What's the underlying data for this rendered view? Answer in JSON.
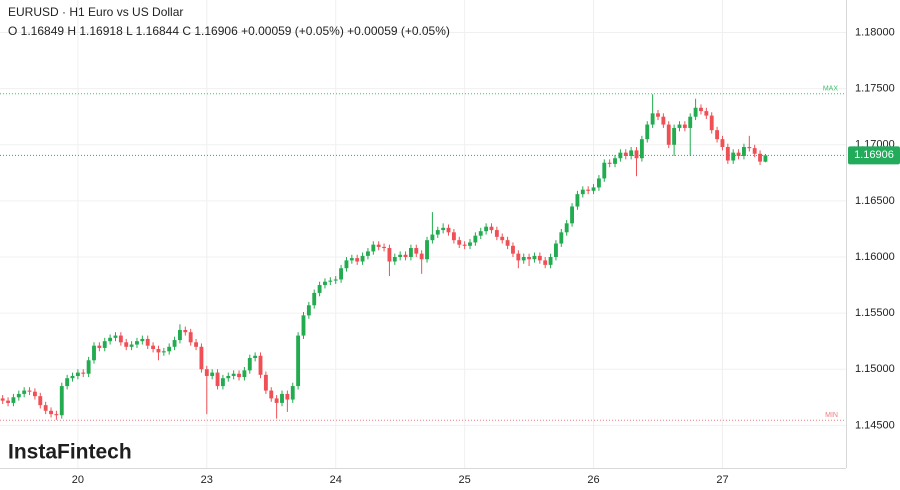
{
  "chart_data": {
    "type": "candlestick",
    "title": "EURUSD · H1 Euro vs US Dollar",
    "subtitle": "O 1.16849 H 1.16918 L 1.16844 C 1.16906 +0.00059 (+0.05%) +0.00059 (+0.05%)",
    "watermark": "InstaFintech",
    "up_color": "#22ab4f",
    "down_color": "#ef4f55",
    "grid": true,
    "ylim": [
      1.1412,
      1.1829
    ],
    "yticks": [
      {
        "value": 1.145,
        "label": "1.14500"
      },
      {
        "value": 1.15,
        "label": "1.15000"
      },
      {
        "value": 1.155,
        "label": "1.15500"
      },
      {
        "value": 1.16,
        "label": "1.16000"
      },
      {
        "value": 1.165,
        "label": "1.16500"
      },
      {
        "value": 1.17,
        "label": "1.17000"
      },
      {
        "value": 1.175,
        "label": "1.17500"
      },
      {
        "value": 1.18,
        "label": "1.18000"
      }
    ],
    "xlim": [
      -0.5,
      157
    ],
    "xticks": [
      {
        "value": 14,
        "label": "20"
      },
      {
        "value": 38,
        "label": "23"
      },
      {
        "value": 62,
        "label": "24"
      },
      {
        "value": 86,
        "label": "25"
      },
      {
        "value": 110,
        "label": "26"
      },
      {
        "value": 134,
        "label": "27"
      }
    ],
    "levels": [
      {
        "name": "MAX",
        "value": 1.17455,
        "color": "#3cbf6a"
      },
      {
        "name": "MIN",
        "value": 1.14545,
        "color": "#f07a7f"
      }
    ],
    "last_price": 1.16906,
    "last_price_color": "#22ab5a",
    "ohlc": [
      [
        1.1474,
        1.1477,
        1.1469,
        1.1472
      ],
      [
        1.1472,
        1.1475,
        1.1467,
        1.147
      ],
      [
        1.147,
        1.1478,
        1.1467,
        1.1475
      ],
      [
        1.1475,
        1.1481,
        1.1472,
        1.1478
      ],
      [
        1.1478,
        1.1484,
        1.1475,
        1.1481
      ],
      [
        1.1481,
        1.1484,
        1.1477,
        1.148
      ],
      [
        1.148,
        1.1483,
        1.1473,
        1.1476
      ],
      [
        1.1476,
        1.1479,
        1.1465,
        1.1468
      ],
      [
        1.1468,
        1.1471,
        1.146,
        1.1463
      ],
      [
        1.1463,
        1.1466,
        1.1457,
        1.146
      ],
      [
        1.146,
        1.1463,
        1.1455,
        1.1459
      ],
      [
        1.1459,
        1.1488,
        1.1456,
        1.1485
      ],
      [
        1.1485,
        1.1495,
        1.1482,
        1.1492
      ],
      [
        1.1492,
        1.1497,
        1.1489,
        1.1494
      ],
      [
        1.1494,
        1.15,
        1.1491,
        1.1497
      ],
      [
        1.1497,
        1.15,
        1.1493,
        1.1496
      ],
      [
        1.1496,
        1.1511,
        1.1493,
        1.1508
      ],
      [
        1.1508,
        1.1524,
        1.1505,
        1.1521
      ],
      [
        1.1521,
        1.1524,
        1.1516,
        1.1519
      ],
      [
        1.1519,
        1.1528,
        1.1516,
        1.1525
      ],
      [
        1.1525,
        1.1531,
        1.1522,
        1.1528
      ],
      [
        1.1528,
        1.1533,
        1.1525,
        1.153
      ],
      [
        1.153,
        1.1533,
        1.1521,
        1.1524
      ],
      [
        1.1524,
        1.1527,
        1.1517,
        1.152
      ],
      [
        1.152,
        1.1525,
        1.1517,
        1.1522
      ],
      [
        1.1522,
        1.1528,
        1.1519,
        1.1525
      ],
      [
        1.1525,
        1.153,
        1.1522,
        1.1527
      ],
      [
        1.1527,
        1.153,
        1.1518,
        1.1521
      ],
      [
        1.1521,
        1.1524,
        1.1515,
        1.1518
      ],
      [
        1.1518,
        1.1521,
        1.1508,
        1.1515
      ],
      [
        1.1515,
        1.1519,
        1.1512,
        1.1516
      ],
      [
        1.1516,
        1.1523,
        1.1513,
        1.152
      ],
      [
        1.152,
        1.1529,
        1.1517,
        1.1526
      ],
      [
        1.1526,
        1.154,
        1.1523,
        1.1535
      ],
      [
        1.1535,
        1.1538,
        1.153,
        1.1533
      ],
      [
        1.1533,
        1.1536,
        1.1521,
        1.1524
      ],
      [
        1.1524,
        1.1527,
        1.1517,
        1.152
      ],
      [
        1.152,
        1.1523,
        1.1497,
        1.15
      ],
      [
        1.15,
        1.1503,
        1.146,
        1.1494
      ],
      [
        1.1494,
        1.15,
        1.1491,
        1.1497
      ],
      [
        1.1497,
        1.15,
        1.1482,
        1.1485
      ],
      [
        1.1485,
        1.1495,
        1.1482,
        1.1492
      ],
      [
        1.1492,
        1.1497,
        1.1489,
        1.1494
      ],
      [
        1.1494,
        1.1499,
        1.1491,
        1.1496
      ],
      [
        1.1496,
        1.1499,
        1.149,
        1.1493
      ],
      [
        1.1493,
        1.1502,
        1.149,
        1.1499
      ],
      [
        1.1499,
        1.1513,
        1.1496,
        1.151
      ],
      [
        1.151,
        1.1515,
        1.1507,
        1.1512
      ],
      [
        1.1512,
        1.1515,
        1.1492,
        1.1495
      ],
      [
        1.1495,
        1.1498,
        1.1478,
        1.1481
      ],
      [
        1.1481,
        1.1484,
        1.1471,
        1.1474
      ],
      [
        1.1474,
        1.1477,
        1.1456,
        1.147
      ],
      [
        1.147,
        1.1481,
        1.1467,
        1.1478
      ],
      [
        1.1478,
        1.1481,
        1.1462,
        1.1473
      ],
      [
        1.1473,
        1.1488,
        1.147,
        1.1485
      ],
      [
        1.1485,
        1.1533,
        1.1482,
        1.153
      ],
      [
        1.153,
        1.1551,
        1.1527,
        1.1548
      ],
      [
        1.1548,
        1.156,
        1.1545,
        1.1557
      ],
      [
        1.1557,
        1.1571,
        1.1554,
        1.1568
      ],
      [
        1.1568,
        1.1578,
        1.1565,
        1.1575
      ],
      [
        1.1575,
        1.1581,
        1.1572,
        1.1578
      ],
      [
        1.1578,
        1.1582,
        1.1575,
        1.1579
      ],
      [
        1.1579,
        1.1583,
        1.1576,
        1.158
      ],
      [
        1.158,
        1.1593,
        1.1577,
        1.159
      ],
      [
        1.159,
        1.16,
        1.1587,
        1.1597
      ],
      [
        1.1597,
        1.1602,
        1.1594,
        1.1599
      ],
      [
        1.1599,
        1.1602,
        1.1593,
        1.1596
      ],
      [
        1.1596,
        1.1604,
        1.1593,
        1.1601
      ],
      [
        1.1601,
        1.1608,
        1.1598,
        1.1605
      ],
      [
        1.1605,
        1.1614,
        1.1602,
        1.1611
      ],
      [
        1.1611,
        1.1614,
        1.1606,
        1.1609
      ],
      [
        1.1609,
        1.1612,
        1.1605,
        1.1608
      ],
      [
        1.1608,
        1.1611,
        1.1583,
        1.1596
      ],
      [
        1.1596,
        1.1603,
        1.1593,
        1.16
      ],
      [
        1.16,
        1.1605,
        1.1597,
        1.1602
      ],
      [
        1.1602,
        1.1605,
        1.1597,
        1.16
      ],
      [
        1.16,
        1.1611,
        1.1597,
        1.1608
      ],
      [
        1.1608,
        1.1611,
        1.16,
        1.1603
      ],
      [
        1.1603,
        1.1606,
        1.1585,
        1.1598
      ],
      [
        1.1598,
        1.1618,
        1.1595,
        1.1615
      ],
      [
        1.1615,
        1.164,
        1.1612,
        1.162
      ],
      [
        1.162,
        1.1627,
        1.1617,
        1.1624
      ],
      [
        1.1624,
        1.163,
        1.1621,
        1.1626
      ],
      [
        1.1626,
        1.1629,
        1.1619,
        1.1622
      ],
      [
        1.1622,
        1.1625,
        1.1612,
        1.1615
      ],
      [
        1.1615,
        1.1618,
        1.1608,
        1.1611
      ],
      [
        1.1611,
        1.1614,
        1.1607,
        1.161
      ],
      [
        1.161,
        1.1616,
        1.1607,
        1.1613
      ],
      [
        1.1613,
        1.1622,
        1.161,
        1.1619
      ],
      [
        1.1619,
        1.1626,
        1.1616,
        1.1623
      ],
      [
        1.1623,
        1.163,
        1.162,
        1.1627
      ],
      [
        1.1627,
        1.163,
        1.1621,
        1.1624
      ],
      [
        1.1624,
        1.1627,
        1.1615,
        1.1618
      ],
      [
        1.1618,
        1.1621,
        1.1612,
        1.1615
      ],
      [
        1.1615,
        1.1618,
        1.1607,
        1.161
      ],
      [
        1.161,
        1.1613,
        1.16,
        1.1603
      ],
      [
        1.1603,
        1.1606,
        1.159,
        1.1597
      ],
      [
        1.1597,
        1.1603,
        1.1594,
        1.16
      ],
      [
        1.16,
        1.1603,
        1.1592,
        1.1598
      ],
      [
        1.1598,
        1.1604,
        1.1595,
        1.1601
      ],
      [
        1.1601,
        1.1604,
        1.1594,
        1.1597
      ],
      [
        1.1597,
        1.16,
        1.159,
        1.1593
      ],
      [
        1.1593,
        1.1603,
        1.159,
        1.16
      ],
      [
        1.16,
        1.1615,
        1.1597,
        1.1612
      ],
      [
        1.1612,
        1.1625,
        1.1609,
        1.1622
      ],
      [
        1.1622,
        1.1633,
        1.1619,
        1.163
      ],
      [
        1.163,
        1.1648,
        1.1627,
        1.1645
      ],
      [
        1.1645,
        1.1659,
        1.1642,
        1.1656
      ],
      [
        1.1656,
        1.1663,
        1.1653,
        1.166
      ],
      [
        1.166,
        1.1663,
        1.1656,
        1.1659
      ],
      [
        1.1659,
        1.1665,
        1.1656,
        1.1662
      ],
      [
        1.1662,
        1.1673,
        1.1659,
        1.167
      ],
      [
        1.167,
        1.1687,
        1.1667,
        1.1684
      ],
      [
        1.1684,
        1.1687,
        1.168,
        1.1683
      ],
      [
        1.1683,
        1.1691,
        1.168,
        1.1688
      ],
      [
        1.1688,
        1.1696,
        1.1685,
        1.1693
      ],
      [
        1.1693,
        1.1696,
        1.1687,
        1.169
      ],
      [
        1.169,
        1.1698,
        1.1687,
        1.1695
      ],
      [
        1.1695,
        1.1698,
        1.1672,
        1.1688
      ],
      [
        1.1688,
        1.1708,
        1.1685,
        1.1705
      ],
      [
        1.1705,
        1.1721,
        1.1702,
        1.1718
      ],
      [
        1.1718,
        1.1745,
        1.1715,
        1.1728
      ],
      [
        1.1728,
        1.1731,
        1.1722,
        1.1725
      ],
      [
        1.1725,
        1.1728,
        1.1715,
        1.1718
      ],
      [
        1.1718,
        1.1721,
        1.1697,
        1.17
      ],
      [
        1.17,
        1.1718,
        1.169,
        1.1715
      ],
      [
        1.1715,
        1.1721,
        1.1712,
        1.1718
      ],
      [
        1.1718,
        1.1721,
        1.1712,
        1.1715
      ],
      [
        1.1715,
        1.1728,
        1.169,
        1.1725
      ],
      [
        1.1725,
        1.1741,
        1.1722,
        1.1733
      ],
      [
        1.1733,
        1.1736,
        1.1727,
        1.173
      ],
      [
        1.173,
        1.1733,
        1.1723,
        1.1726
      ],
      [
        1.1726,
        1.1729,
        1.171,
        1.1713
      ],
      [
        1.1713,
        1.1716,
        1.1702,
        1.1705
      ],
      [
        1.1705,
        1.1708,
        1.1695,
        1.1698
      ],
      [
        1.1698,
        1.1701,
        1.1683,
        1.1686
      ],
      [
        1.1686,
        1.1696,
        1.1683,
        1.1693
      ],
      [
        1.1693,
        1.1696,
        1.1687,
        1.169
      ],
      [
        1.169,
        1.1701,
        1.1687,
        1.1698
      ],
      [
        1.1698,
        1.1708,
        1.1694,
        1.1697
      ],
      [
        1.1697,
        1.17,
        1.1689,
        1.1692
      ],
      [
        1.1692,
        1.1695,
        1.1682,
        1.1685
      ],
      [
        1.16849,
        1.16918,
        1.16844,
        1.16906
      ]
    ]
  }
}
